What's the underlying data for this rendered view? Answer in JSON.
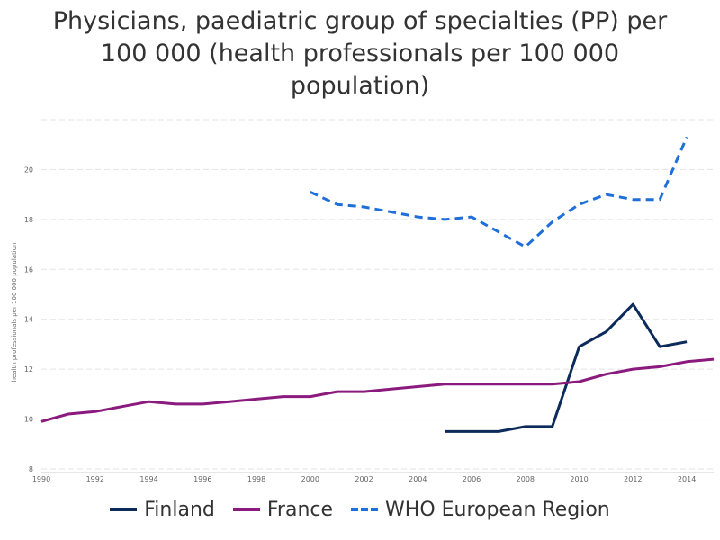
{
  "chart_data": {
    "type": "line",
    "title_lines": [
      "Physicians, paediatric group of specialties (PP) per",
      "100 000 (health professionals per 100 000",
      "population)"
    ],
    "ylabel": "health professionals per 100 000 population",
    "xlim": [
      1990,
      2015
    ],
    "ylim": [
      8,
      22
    ],
    "x_ticks": [
      "1990",
      "1992",
      "1994",
      "1996",
      "1998",
      "2000",
      "2002",
      "2004",
      "2006",
      "2008",
      "2010",
      "2012",
      "2014"
    ],
    "y_ticks": [
      "8",
      "10",
      "12",
      "14",
      "16",
      "18",
      "20"
    ],
    "grid": true,
    "legend_position": "bottom",
    "series": [
      {
        "name": "Finland",
        "color": "#0c2a5a",
        "style": "solid",
        "x": [
          2005,
          2006,
          2007,
          2008,
          2009,
          2010,
          2011,
          2012,
          2013,
          2014
        ],
        "values": [
          9.5,
          9.5,
          9.5,
          9.7,
          9.7,
          12.9,
          13.5,
          14.6,
          12.9,
          13.1
        ]
      },
      {
        "name": "France",
        "color": "#8b1a7e",
        "style": "solid",
        "x": [
          1990,
          1991,
          1992,
          1993,
          1994,
          1995,
          1996,
          1997,
          1998,
          1999,
          2000,
          2001,
          2002,
          2003,
          2004,
          2005,
          2006,
          2007,
          2008,
          2009,
          2010,
          2011,
          2012,
          2013,
          2014,
          2015
        ],
        "values": [
          9.9,
          10.2,
          10.3,
          10.5,
          10.7,
          10.6,
          10.6,
          10.7,
          10.8,
          10.9,
          10.9,
          11.1,
          11.1,
          11.2,
          11.3,
          11.4,
          11.4,
          11.4,
          11.4,
          11.4,
          11.5,
          11.8,
          12.0,
          12.1,
          12.3,
          12.4
        ]
      },
      {
        "name": "WHO European Region",
        "color": "#1e6fd9",
        "style": "dashed",
        "x": [
          2000,
          2001,
          2002,
          2003,
          2004,
          2005,
          2006,
          2007,
          2008,
          2009,
          2010,
          2011,
          2012,
          2013,
          2014
        ],
        "values": [
          19.1,
          18.6,
          18.5,
          18.3,
          18.1,
          18.0,
          18.1,
          17.5,
          16.9,
          17.9,
          18.6,
          19.0,
          18.8,
          18.8,
          21.3
        ]
      }
    ]
  }
}
